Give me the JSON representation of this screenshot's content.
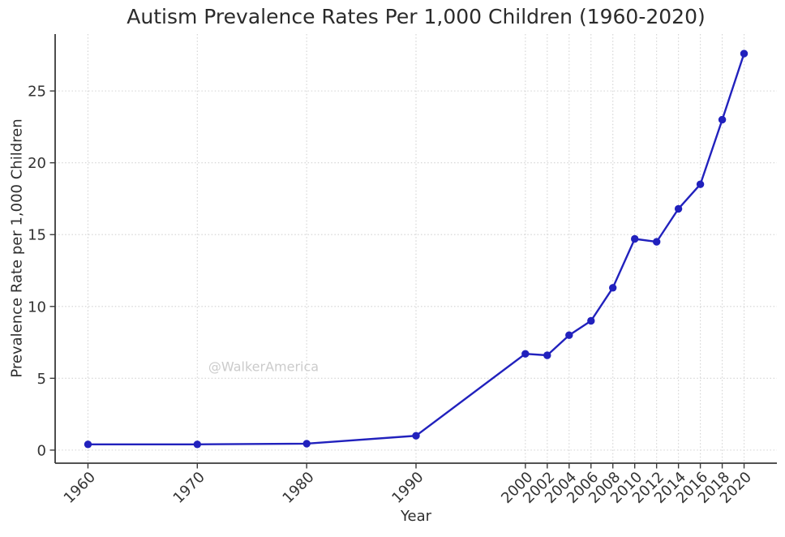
{
  "chart_data": {
    "type": "line",
    "title": "Autism Prevalence Rates Per 1,000 Children (1960-2020)",
    "xlabel": "Year",
    "ylabel": "Prevalence Rate per 1,000 Children",
    "watermark": "@WalkerAmerica",
    "x": [
      1960,
      1970,
      1980,
      1990,
      2000,
      2002,
      2004,
      2006,
      2008,
      2010,
      2012,
      2014,
      2016,
      2018,
      2020
    ],
    "values": [
      0.4,
      0.4,
      0.45,
      1.0,
      6.7,
      6.6,
      8.0,
      9.0,
      11.3,
      14.7,
      14.5,
      16.8,
      18.5,
      23.0,
      27.6
    ],
    "x_tick_labels": [
      "1960",
      "1970",
      "1980",
      "1990",
      "2000",
      "2002",
      "2004",
      "2006",
      "2008",
      "2010",
      "2012",
      "2014",
      "2016",
      "2018",
      "2020"
    ],
    "y_ticks": [
      0,
      5,
      10,
      15,
      20,
      25
    ],
    "y_tick_labels": [
      "0",
      "5",
      "10",
      "15",
      "20",
      "25"
    ],
    "xlim": [
      1957,
      2023
    ],
    "ylim": [
      -0.91,
      28.96
    ],
    "grid": true,
    "grid_style": "dotted",
    "legend": "none",
    "colors": {
      "line": "#2121bd",
      "marker": "#2121bd",
      "grid": "#d2d2d2",
      "axis": "#3a3a3a",
      "tick_text": "#333333",
      "title_text": "#2b2b2b",
      "watermark_text": "#cbcbcb"
    }
  }
}
